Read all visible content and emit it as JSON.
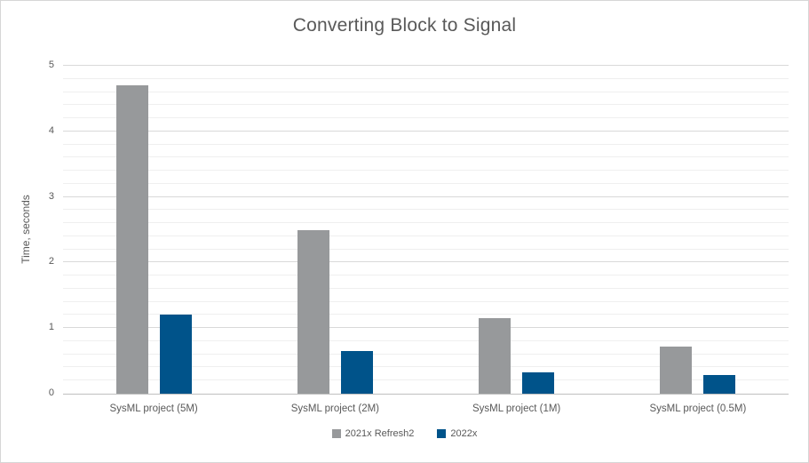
{
  "chart_data": {
    "type": "bar",
    "title": "Converting Block to Signal",
    "xlabel": "",
    "ylabel": "Time, seconds",
    "categories": [
      "SysML project (5M)",
      "SysML project (2M)",
      "SysML project (1M)",
      "SysML project (0.5M)"
    ],
    "series": [
      {
        "name": "2021x Refresh2",
        "color": "#97999b",
        "values": [
          4.7,
          2.5,
          1.15,
          0.72
        ]
      },
      {
        "name": "2022x",
        "color": "#00538a",
        "values": [
          1.2,
          0.65,
          0.32,
          0.28
        ]
      }
    ],
    "ylim": [
      0,
      5
    ],
    "y_ticks": [
      0,
      1,
      2,
      3,
      4,
      5
    ],
    "minor_grid_step": 0.2,
    "grid": "on",
    "legend_position": "bottom"
  },
  "colors": {
    "title_text": "#595959",
    "axis_text": "#595959",
    "major_gridline": "#d9d9d9",
    "minor_gridline": "#efefef",
    "axis_line": "#bfbfbf",
    "frame_border": "#d6d6d6",
    "background": "#ffffff"
  }
}
